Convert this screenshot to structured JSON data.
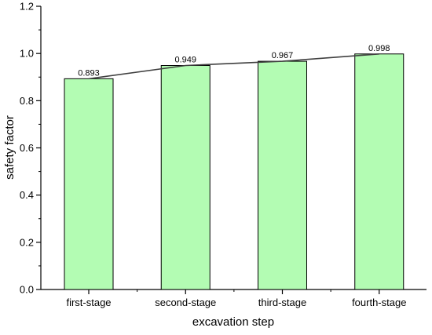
{
  "chart_data": {
    "type": "bar",
    "title": "",
    "xlabel": "excavation step",
    "ylabel": "safety factor",
    "categories": [
      "first-stage",
      "second-stage",
      "third-stage",
      "fourth-stage"
    ],
    "values": [
      0.893,
      0.949,
      0.967,
      0.998
    ],
    "value_labels": [
      "0.893",
      "0.949",
      "0.967",
      "0.998"
    ],
    "ylim": [
      0,
      1.2
    ],
    "yticks": [
      0.0,
      0.2,
      0.4,
      0.6,
      0.8,
      1.0,
      1.2
    ],
    "ytick_labels": [
      "0.0",
      "0.2",
      "0.4",
      "0.6",
      "0.8",
      "1.0",
      "1.2"
    ],
    "overlay_line": true,
    "grid": false,
    "colors": {
      "bar_fill": "#b3fcb3",
      "bar_stroke": "#000000",
      "line": "#404040",
      "axis": "#000000"
    }
  }
}
